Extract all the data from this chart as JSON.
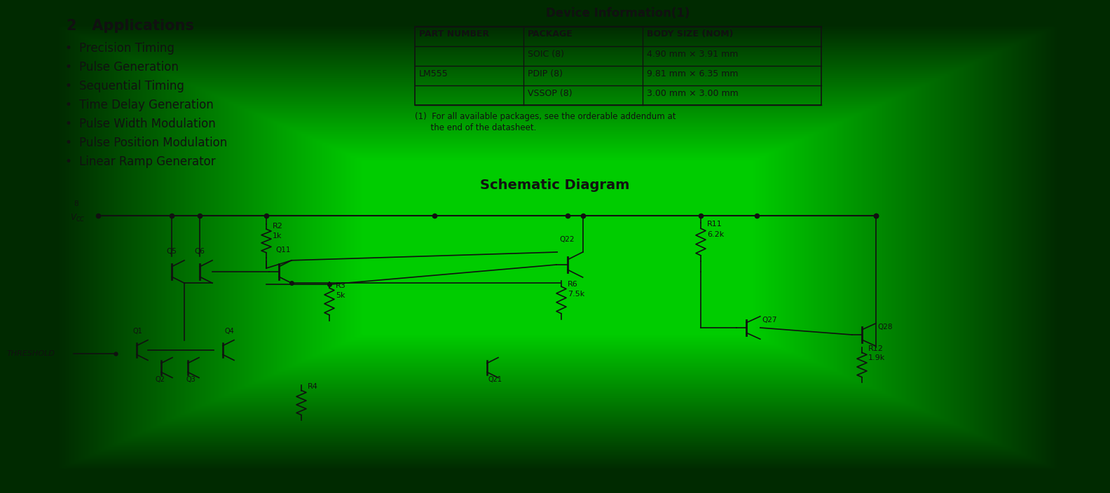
{
  "bg_color": "#00cc00",
  "title_section": "2   Applications",
  "bullet_items": [
    "Precision Timing",
    "Pulse Generation",
    "Sequential Timing",
    "Time Delay Generation",
    "Pulse Width Modulation",
    "Pulse Position Modulation",
    "Linear Ramp Generator"
  ],
  "device_info_title": "Device Information(1)",
  "table_headers": [
    "PART NUMBER",
    "PACKAGE",
    "BODY SIZE (NOM)"
  ],
  "table_rows": [
    [
      "",
      "SOIC (8)",
      "4.90 mm × 3.91 mm"
    ],
    [
      "LM555",
      "PDIP (8)",
      "9.81 mm × 6.35 mm"
    ],
    [
      "",
      "VSSOP (8)",
      "3.00 mm × 3.00 mm"
    ]
  ],
  "footnote_line1": "(1)  For all available packages, see the orderable addendum at",
  "footnote_line2": "      the end of the datasheet.",
  "schematic_title": "Schematic Diagram",
  "text_color": "#111111",
  "line_color": "#111111"
}
